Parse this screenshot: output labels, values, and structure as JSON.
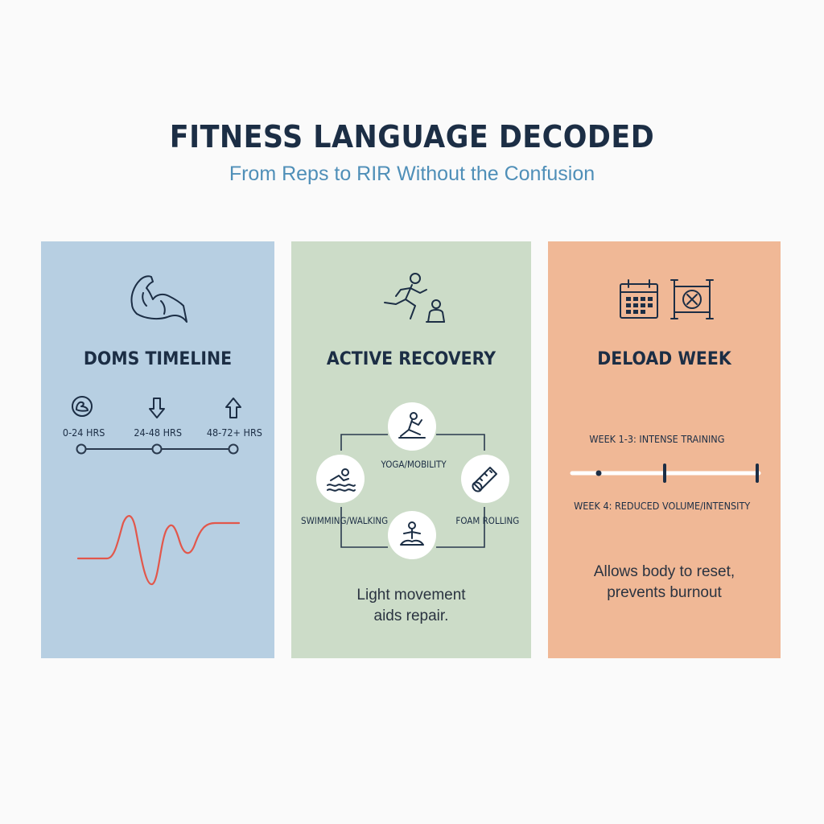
{
  "header": {
    "title": "FITNESS LANGUAGE DECODED",
    "subtitle": "From Reps to RIR Without the Confusion"
  },
  "panels": {
    "doms": {
      "title": "DOMS TIMELINE",
      "icon": "flexed-bicep-icon",
      "color": "#b7cfe2",
      "stages": [
        {
          "label": "0-24 HRS",
          "icon": "sore-muscle-icon"
        },
        {
          "label": "24-48 HRS",
          "icon": "arrow-down-icon"
        },
        {
          "label": "48-72+ HRS",
          "icon": "arrow-up-icon"
        }
      ]
    },
    "active": {
      "title": "ACTIVE RECOVERY",
      "icon": "runner-icon",
      "color": "#ccdcc8",
      "activities": [
        {
          "label": "YOGA/MOBILITY",
          "icon": "yoga-icon"
        },
        {
          "label": "FOAM ROLLING",
          "icon": "foam-roller-icon"
        },
        {
          "label": "SWIMMING/WALKING",
          "icon": "swimmer-icon"
        },
        {
          "label": "",
          "icon": "meditation-icon"
        }
      ],
      "note_line1": "Light movement",
      "note_line2": "aids repair."
    },
    "deload": {
      "title": "DELOAD WEEK",
      "icon": "calendar-icon",
      "color": "#f0b896",
      "phase1": "WEEK 1-3: INTENSE TRAINING",
      "phase2": "WEEK 4: REDUCED VOLUME/INTENSITY",
      "note_line1": "Allows body to reset,",
      "note_line2": "prevents burnout"
    }
  }
}
